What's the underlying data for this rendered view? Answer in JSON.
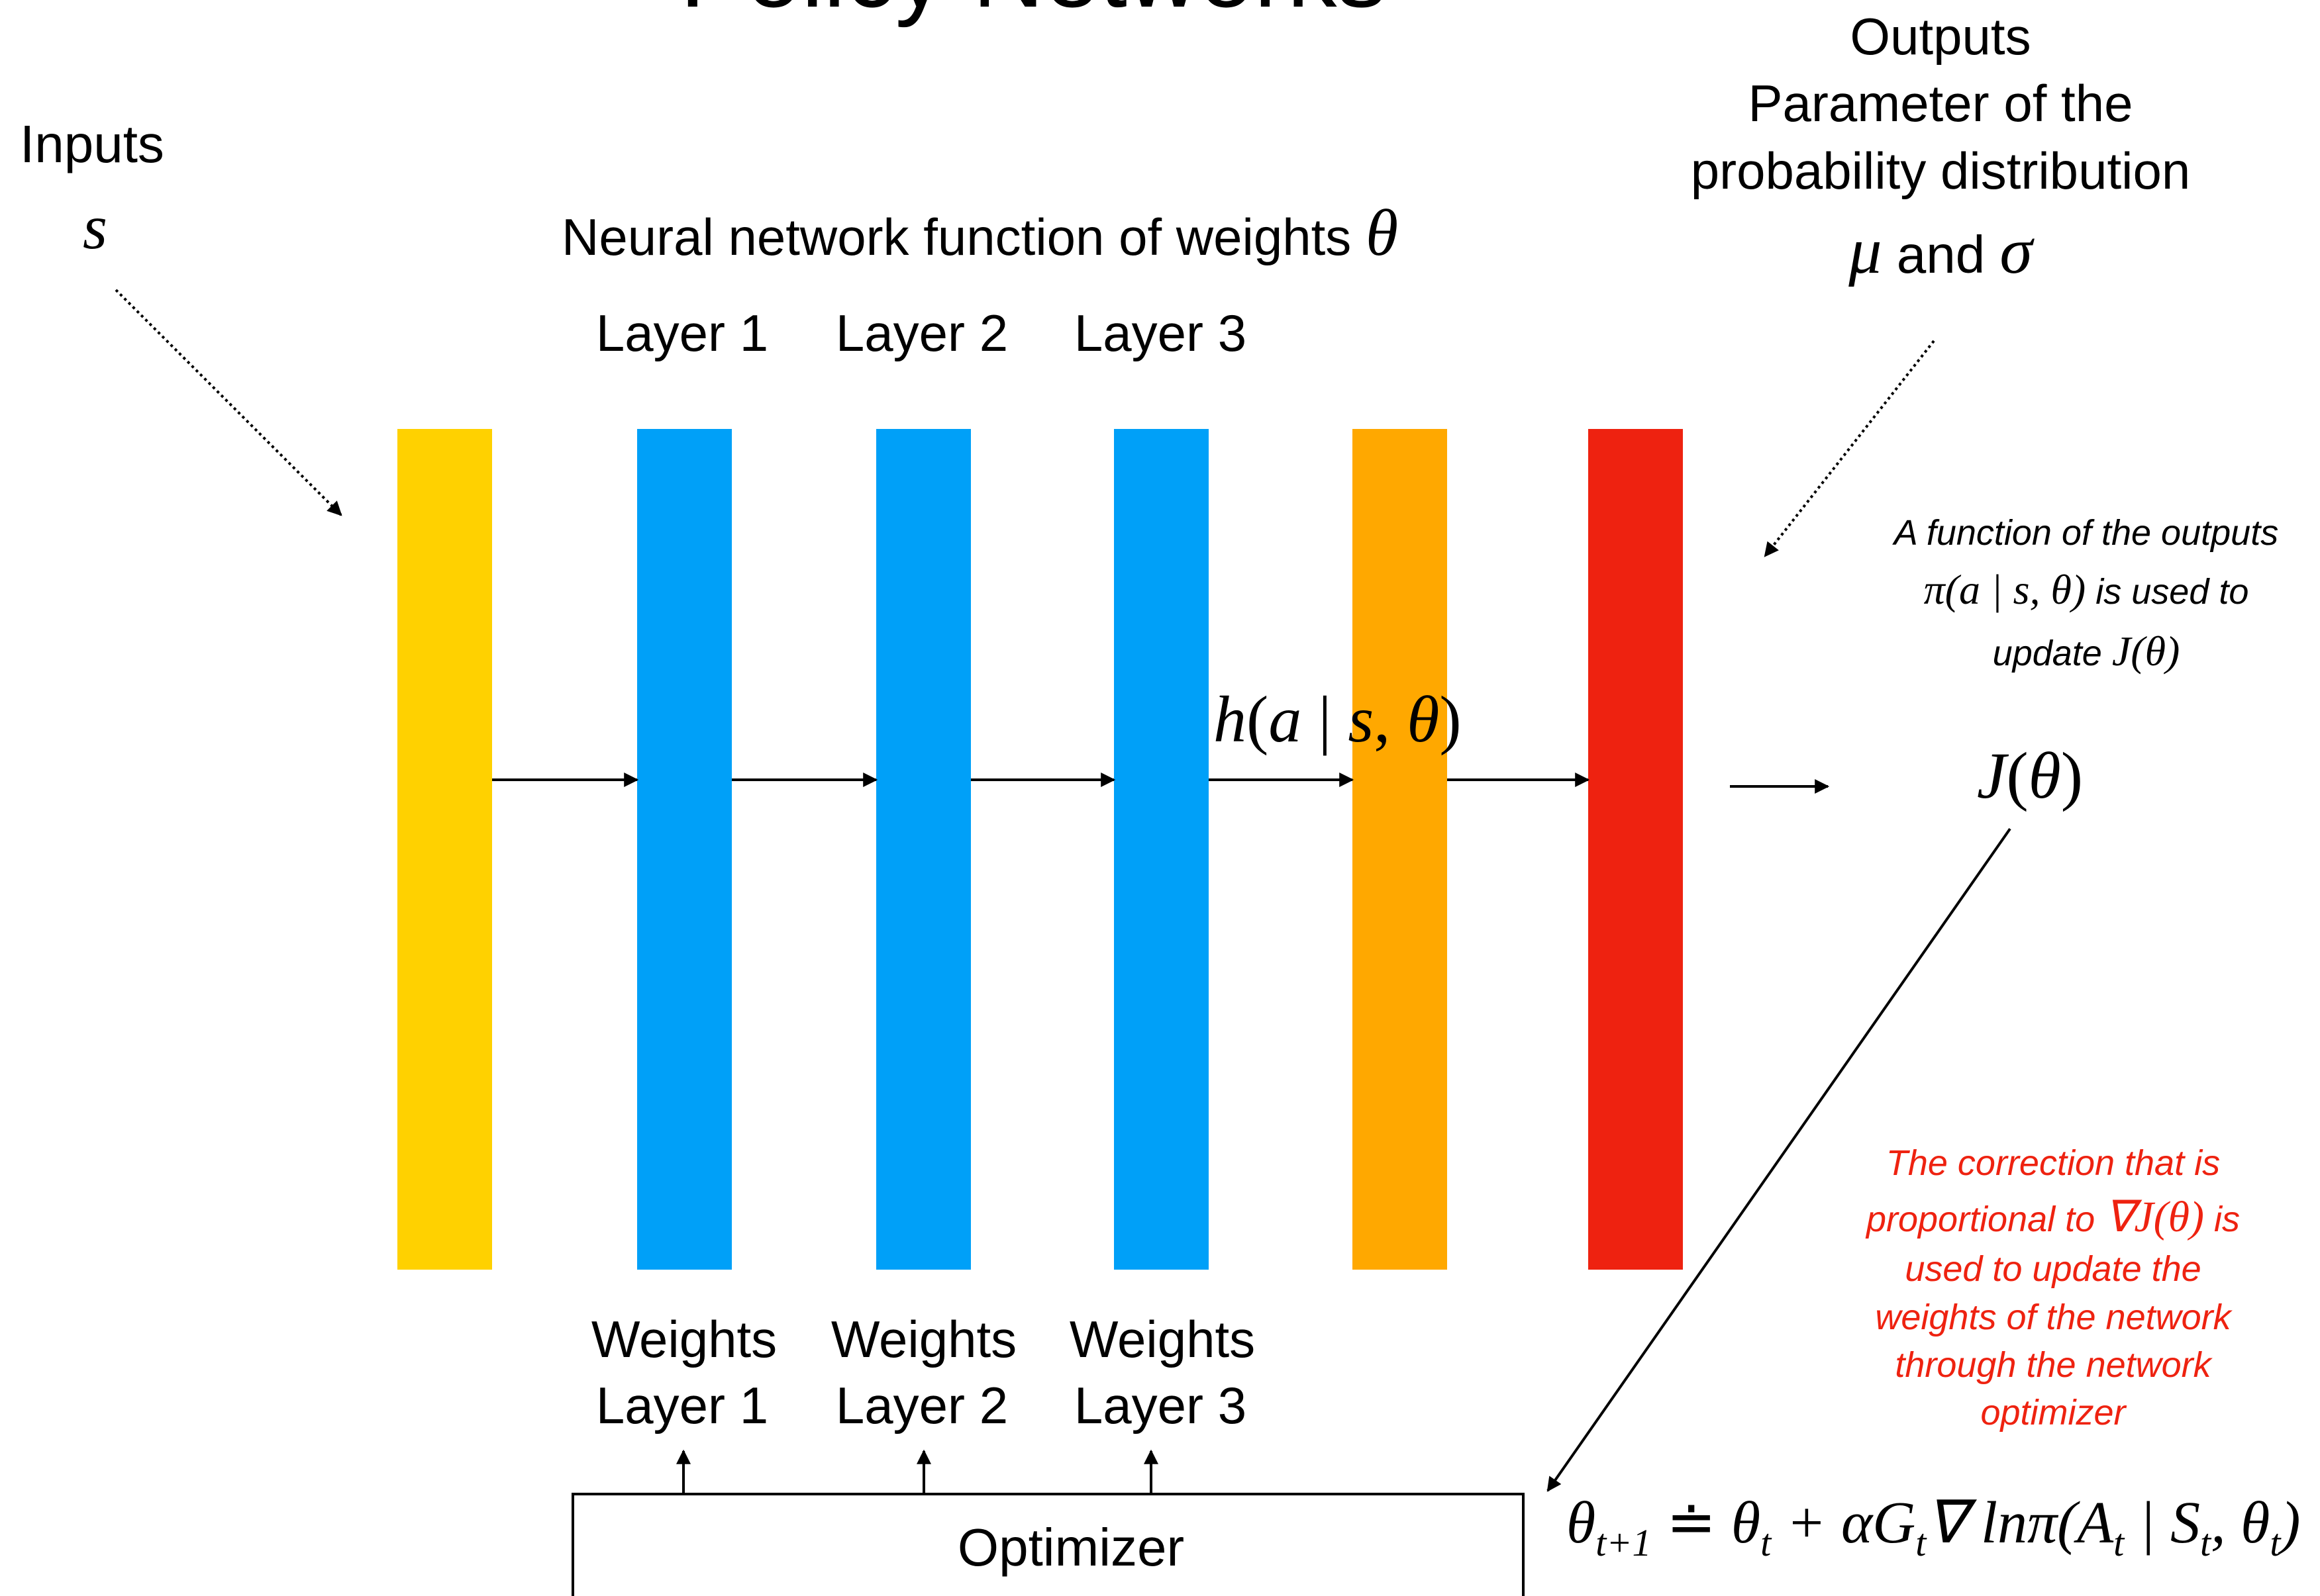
{
  "title": "Policy Networks",
  "inputs": {
    "label": "Inputs",
    "symbol": "s"
  },
  "network_label": {
    "text": "Neural network function of weights ",
    "symbol": "θ"
  },
  "layers": [
    {
      "label": "Layer 1",
      "weights_line1": "Weights",
      "weights_line2": "Layer 1"
    },
    {
      "label": "Layer 2",
      "weights_line1": "Weights",
      "weights_line2": "Layer 2"
    },
    {
      "label": "Layer 3",
      "weights_line1": "Weights",
      "weights_line2": "Layer 3"
    }
  ],
  "outputs": {
    "line1": "Outputs",
    "line2": "Parameter of the",
    "line3": "probability distribution",
    "mu": "μ",
    "and": " and ",
    "sigma": "σ"
  },
  "h_label": {
    "h": "h",
    "open": "(",
    "a": "a",
    "bar": " | ",
    "s": "s",
    "comma": ", ",
    "theta": "θ",
    "close": ")"
  },
  "objective": {
    "J": "J",
    "open": "(",
    "theta": "θ",
    "close": ")"
  },
  "outputs_note": {
    "line1": "A function of the outputs",
    "line2_math": "π(a | s, θ)",
    "line2_text": " is used to",
    "line3_text": "update ",
    "line3_math": "J(θ)"
  },
  "correction_note": {
    "line1": "The correction that is",
    "line2_text": "proportional to ",
    "line2_math": "∇J(θ)",
    "line2_end": " is",
    "line3": "used to update the",
    "line4": "weights of the network",
    "line5": "through the network",
    "line6": "optimizer"
  },
  "optimizer": {
    "label": "Optimizer"
  },
  "update_rule": {
    "theta": "θ",
    "t1": "t+1",
    "doteq": " ≐ ",
    "theta2": "θ",
    "t2": "t",
    "plus": " + αG",
    "t3": "t",
    "grad": "∇ lnπ(A",
    "t4": "t",
    "bar": " | S",
    "t5": "t",
    "comma": ", θ",
    "t6": "t",
    "close": ")"
  },
  "colors": {
    "input_bar": "#FFD100",
    "hidden_bar": "#00A0F8",
    "pre_output_bar": "#FFA800",
    "output_bar": "#EE2210",
    "note_red": "#EE2210",
    "ink": "#000000"
  }
}
